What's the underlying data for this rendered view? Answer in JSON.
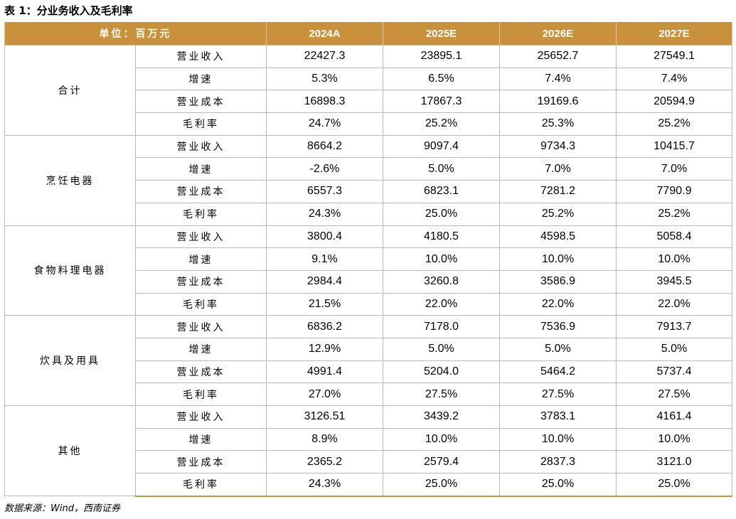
{
  "title": "表 1：分业务收入及毛利率",
  "header": {
    "unit": "单位：百万元",
    "years": [
      "2024A",
      "2025E",
      "2026E",
      "2027E"
    ]
  },
  "segments": [
    {
      "name": "合计",
      "rows": [
        {
          "metric": "营业收入",
          "values": [
            "22427.3",
            "23895.1",
            "25652.7",
            "27549.1"
          ]
        },
        {
          "metric": "增速",
          "values": [
            "5.3%",
            "6.5%",
            "7.4%",
            "7.4%"
          ]
        },
        {
          "metric": "营业成本",
          "values": [
            "16898.3",
            "17867.3",
            "19169.6",
            "20594.9"
          ]
        },
        {
          "metric": "毛利率",
          "values": [
            "24.7%",
            "25.2%",
            "25.3%",
            "25.2%"
          ]
        }
      ]
    },
    {
      "name": "烹饪电器",
      "rows": [
        {
          "metric": "营业收入",
          "values": [
            "8664.2",
            "9097.4",
            "9734.3",
            "10415.7"
          ]
        },
        {
          "metric": "增速",
          "values": [
            "-2.6%",
            "5.0%",
            "7.0%",
            "7.0%"
          ]
        },
        {
          "metric": "营业成本",
          "values": [
            "6557.3",
            "6823.1",
            "7281.2",
            "7790.9"
          ]
        },
        {
          "metric": "毛利率",
          "values": [
            "24.3%",
            "25.0%",
            "25.2%",
            "25.2%"
          ]
        }
      ]
    },
    {
      "name": "食物料理电器",
      "rows": [
        {
          "metric": "营业收入",
          "values": [
            "3800.4",
            "4180.5",
            "4598.5",
            "5058.4"
          ]
        },
        {
          "metric": "增速",
          "values": [
            "9.1%",
            "10.0%",
            "10.0%",
            "10.0%"
          ]
        },
        {
          "metric": "营业成本",
          "values": [
            "2984.4",
            "3260.8",
            "3586.9",
            "3945.5"
          ]
        },
        {
          "metric": "毛利率",
          "values": [
            "21.5%",
            "22.0%",
            "22.0%",
            "22.0%"
          ]
        }
      ]
    },
    {
      "name": "炊具及用具",
      "rows": [
        {
          "metric": "营业收入",
          "values": [
            "6836.2",
            "7178.0",
            "7536.9",
            "7913.7"
          ]
        },
        {
          "metric": "增速",
          "values": [
            "12.9%",
            "5.0%",
            "5.0%",
            "5.0%"
          ]
        },
        {
          "metric": "营业成本",
          "values": [
            "4991.4",
            "5204.0",
            "5464.2",
            "5737.4"
          ]
        },
        {
          "metric": "毛利率",
          "values": [
            "27.0%",
            "27.5%",
            "27.5%",
            "27.5%"
          ]
        }
      ]
    },
    {
      "name": "其他",
      "rows": [
        {
          "metric": "营业收入",
          "values": [
            "3126.51",
            "3439.2",
            "3783.1",
            "4161.4"
          ]
        },
        {
          "metric": "增速",
          "values": [
            "8.9%",
            "10.0%",
            "10.0%",
            "10.0%"
          ]
        },
        {
          "metric": "营业成本",
          "values": [
            "2365.2",
            "2579.4",
            "2837.3",
            "3121.0"
          ]
        },
        {
          "metric": "毛利率",
          "values": [
            "24.3%",
            "25.0%",
            "25.0%",
            "25.0%"
          ]
        }
      ]
    }
  ],
  "source": "数据来源：Wind，西南证券",
  "colors": {
    "header_bg": "#c9913c",
    "header_text": "#ffffff",
    "grid": "#b8b8b8"
  }
}
